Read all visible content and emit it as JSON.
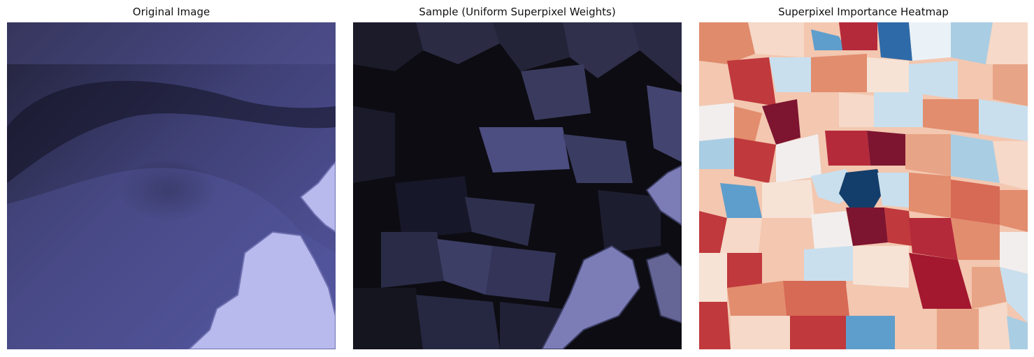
{
  "panels": [
    {
      "title": "Original Image"
    },
    {
      "title": "Sample (Uniform Superpixel Weights)"
    },
    {
      "title": "Superpixel Importance Heatmap"
    }
  ],
  "colors": {
    "ocean": "#4b4c84",
    "ocean_dark": "#17172a",
    "land": "#bfc0ee",
    "heat_red_dark": "#7d1430",
    "heat_red": "#c0393c",
    "heat_orange": "#e28d6e",
    "heat_peach": "#f3c7b0",
    "heat_white": "#f2eeee",
    "heat_lightblue": "#c9dfed",
    "heat_blue": "#5e9ecc",
    "heat_navy": "#133d6a"
  }
}
